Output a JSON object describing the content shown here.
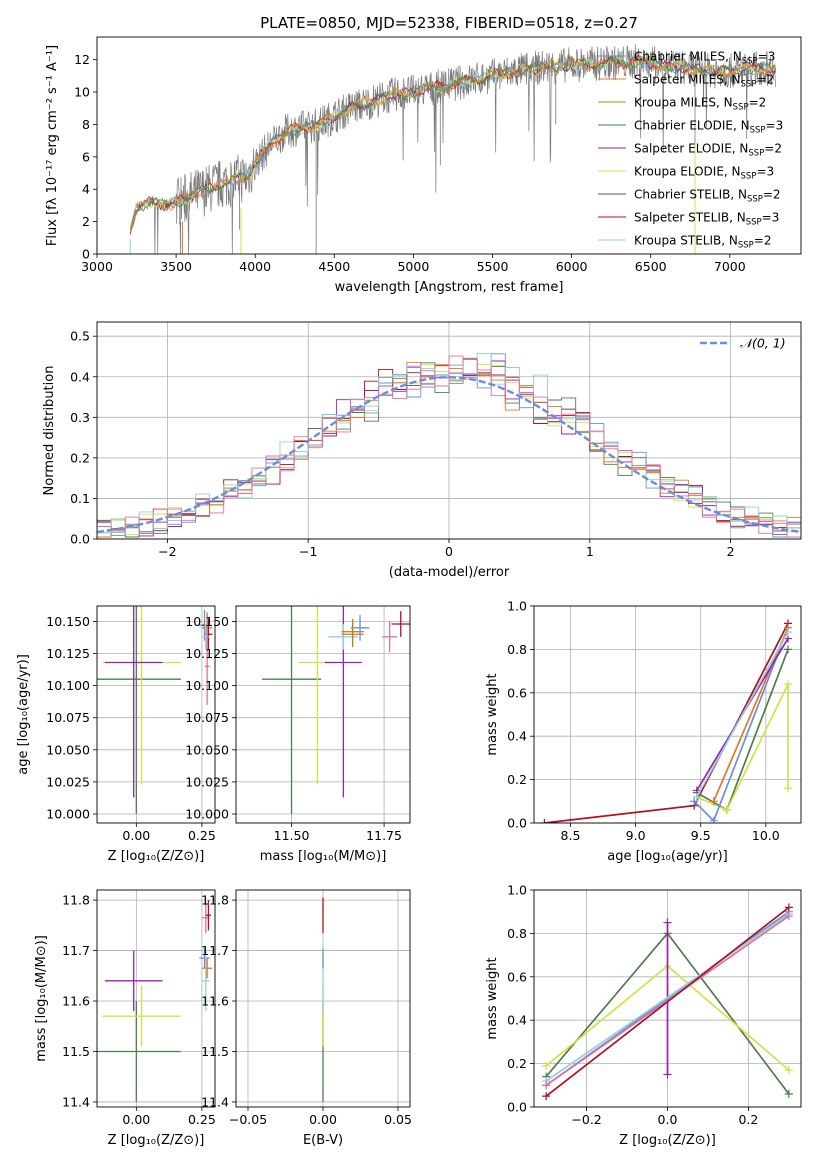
{
  "figure": {
    "title": "PLATE=0850, MJD=52338, FIBERID=0518, z=0.27"
  },
  "colors": {
    "Chabrier MILES": "#6a8fd8",
    "Salpeter MILES": "#e87522",
    "Kroupa MILES": "#b8860b",
    "Chabrier ELODIE": "#4d7d4d",
    "Salpeter ELODIE": "#9b1fb0",
    "Kroupa ELODIE": "#d4e04a",
    "Chabrier STELIB": "#555555",
    "Salpeter STELIB": "#b01020",
    "Kroupa STELIB": "#8fd0e0",
    "Pink": "#e0709f"
  },
  "chart_data": [
    {
      "id": "spectrum",
      "type": "line",
      "title": "PLATE=0850, MJD=52338, FIBERID=0518, z=0.27",
      "xlabel": "wavelength [Angstrom, rest frame]",
      "ylabel": "Flux [fλ 10⁻¹⁷ erg cm⁻² s⁻¹ A⁻¹]",
      "xlim": [
        3000,
        7450
      ],
      "ylim": [
        0,
        13.4
      ],
      "xticks": [
        3000,
        3500,
        4000,
        4500,
        5000,
        5500,
        6000,
        6500,
        7000
      ],
      "yticks": [
        0,
        2,
        4,
        6,
        8,
        10,
        12
      ],
      "grid": false,
      "legend_position": "right",
      "legend": [
        {
          "label": "Chabrier MILES, N",
          "sub": "SSP",
          "tail": "=3"
        },
        {
          "label": "Salpeter MILES, N",
          "sub": "SSP",
          "tail": "=2"
        },
        {
          "label": "Kroupa MILES, N",
          "sub": "SSP",
          "tail": "=2"
        },
        {
          "label": "Chabrier ELODIE, N",
          "sub": "SSP",
          "tail": "=3"
        },
        {
          "label": "Salpeter ELODIE, N",
          "sub": "SSP",
          "tail": "=2"
        },
        {
          "label": "Kroupa ELODIE, N",
          "sub": "SSP",
          "tail": "=3"
        },
        {
          "label": "Chabrier STELIB, N",
          "sub": "SSP",
          "tail": "=2"
        },
        {
          "label": "Salpeter STELIB, N",
          "sub": "SSP",
          "tail": "=3"
        },
        {
          "label": "Kroupa STELIB, N",
          "sub": "SSP",
          "tail": "=2"
        }
      ],
      "continuum": {
        "wavelength": [
          3210,
          3250,
          3350,
          3450,
          3550,
          3650,
          3750,
          3850,
          3950,
          4000,
          4100,
          4200,
          4300,
          4400,
          4500,
          4600,
          4700,
          4800,
          4900,
          5000,
          5100,
          5200,
          5300,
          5400,
          5500,
          5600,
          5700,
          5800,
          5900,
          6000,
          6100,
          6200,
          6300,
          6400,
          6500,
          6600,
          6700,
          6800,
          6900,
          7000,
          7100,
          7200,
          7290
        ],
        "flux": [
          1.5,
          2.9,
          3.2,
          3.0,
          3.4,
          3.8,
          4.2,
          4.5,
          4.8,
          5.6,
          6.8,
          7.6,
          7.8,
          8.0,
          8.5,
          9.0,
          9.3,
          9.6,
          9.9,
          10.0,
          10.2,
          10.4,
          10.6,
          10.8,
          11.0,
          11.2,
          11.4,
          11.5,
          11.6,
          11.7,
          11.7,
          11.8,
          11.8,
          11.9,
          11.8,
          11.6,
          11.5,
          11.4,
          11.3,
          11.3,
          11.4,
          11.5,
          11.4
        ]
      }
    },
    {
      "id": "residuals",
      "type": "histogram",
      "xlabel": "(data-model)/error",
      "ylabel": "Normed distribution",
      "xlim": [
        -2.5,
        2.5
      ],
      "ylim": [
        0,
        0.535
      ],
      "xticks": [
        -2,
        -1,
        0,
        1,
        2
      ],
      "yticks": [
        0.0,
        0.1,
        0.2,
        0.3,
        0.4,
        0.5
      ],
      "grid": true,
      "legend_position": "top-right",
      "legend": [
        {
          "label": "𝒩(0, 1)"
        }
      ],
      "gaussian": {
        "mean": 0,
        "sigma": 1
      }
    },
    {
      "id": "age-vs-z",
      "type": "scatter",
      "xlabel": "Z [log₁₀(Z/Z⊙)]",
      "ylabel": "age  [log₁₀(age/yr)]",
      "xlim": [
        -0.15,
        0.3
      ],
      "ylim": [
        9.993,
        10.162
      ],
      "xticks": [
        0.0,
        0.25
      ],
      "yticks": [
        10.0,
        10.025,
        10.05,
        10.075,
        10.1,
        10.125,
        10.15
      ],
      "grid": true,
      "points": [
        {
          "model": "Chabrier ELODIE",
          "x": 0.0,
          "y": 10.105,
          "xerr": 0.17,
          "yerr": 0.105
        },
        {
          "model": "Kroupa ELODIE",
          "x": 0.02,
          "y": 10.118,
          "xerr": 0.15,
          "yerr": 0.095
        },
        {
          "model": "Salpeter ELODIE",
          "x": -0.01,
          "y": 10.118,
          "xerr": 0.11,
          "yerr": 0.105
        },
        {
          "model": "Chabrier MILES",
          "x": 0.26,
          "y": 10.147,
          "xerr": 0.02,
          "yerr": 0.012
        },
        {
          "model": "Salpeter MILES",
          "x": 0.27,
          "y": 10.145,
          "xerr": 0.02,
          "yerr": 0.012
        },
        {
          "model": "Salpeter STELIB",
          "x": 0.275,
          "y": 10.14,
          "xerr": 0.015,
          "yerr": 0.012
        },
        {
          "model": "Kroupa STELIB",
          "x": 0.265,
          "y": 10.138,
          "xerr": 0.015,
          "yerr": 0.01
        },
        {
          "model": "Pink",
          "x": 0.27,
          "y": 10.115,
          "xerr": 0.01,
          "yerr": 0.03
        }
      ]
    },
    {
      "id": "age-vs-mass",
      "type": "scatter",
      "xlabel": "mass [log₁₀(M/M⊙)]",
      "xlim": [
        11.35,
        11.82
      ],
      "ylim": [
        9.993,
        10.162
      ],
      "xticks": [
        11.5,
        11.75
      ],
      "yticks": [
        10.0,
        10.025,
        10.05,
        10.075,
        10.1,
        10.125,
        10.15
      ],
      "grid": true,
      "points": [
        {
          "model": "Chabrier ELODIE",
          "x": 11.5,
          "y": 10.105,
          "xerr": 0.08,
          "yerr": 0.105
        },
        {
          "model": "Kroupa ELODIE",
          "x": 11.57,
          "y": 10.118,
          "xerr": 0.05,
          "yerr": 0.095
        },
        {
          "model": "Salpeter ELODIE",
          "x": 11.64,
          "y": 10.118,
          "xerr": 0.05,
          "yerr": 0.105
        },
        {
          "model": "Kroupa STELIB",
          "x": 11.64,
          "y": 10.138,
          "xerr": 0.04,
          "yerr": 0.01
        },
        {
          "model": "Salpeter MILES",
          "x": 11.665,
          "y": 10.142,
          "xerr": 0.03,
          "yerr": 0.01
        },
        {
          "model": "Kroupa MILES",
          "x": 11.665,
          "y": 10.14,
          "xerr": 0.03,
          "yerr": 0.01
        },
        {
          "model": "Chabrier MILES",
          "x": 11.685,
          "y": 10.145,
          "xerr": 0.025,
          "yerr": 0.01
        },
        {
          "model": "Pink",
          "x": 11.765,
          "y": 10.138,
          "xerr": 0.02,
          "yerr": 0.012
        },
        {
          "model": "Salpeter STELIB",
          "x": 11.795,
          "y": 10.148,
          "xerr": 0.025,
          "yerr": 0.01
        }
      ]
    },
    {
      "id": "weight-vs-age",
      "type": "line",
      "xlabel": "age  [log₁₀(age/yr)]",
      "ylabel": "mass weight",
      "xlim": [
        8.22,
        10.27
      ],
      "ylim": [
        0,
        1
      ],
      "xticks": [
        8.5,
        9.0,
        9.5,
        10.0
      ],
      "yticks": [
        0.0,
        0.2,
        0.4,
        0.6,
        0.8,
        1.0
      ],
      "grid": true,
      "series": [
        {
          "model": "Salpeter STELIB",
          "x": [
            8.3,
            9.45,
            10.17
          ],
          "y": [
            0.0,
            0.08,
            0.92
          ]
        },
        {
          "model": "Chabrier ELODIE",
          "x": [
            9.47,
            9.7,
            10.17
          ],
          "y": [
            0.14,
            0.06,
            0.8
          ]
        },
        {
          "model": "Kroupa ELODIE",
          "x": [
            9.47,
            9.7,
            10.17,
            10.17
          ],
          "y": [
            0.12,
            0.06,
            0.64,
            0.16
          ]
        },
        {
          "model": "Chabrier MILES",
          "x": [
            9.45,
            9.6,
            10.17
          ],
          "y": [
            0.1,
            0.01,
            0.9
          ]
        },
        {
          "model": "Salpeter MILES",
          "x": [
            9.6,
            10.17
          ],
          "y": [
            0.1,
            0.9
          ]
        },
        {
          "model": "Salpeter ELODIE",
          "x": [
            9.47,
            10.17
          ],
          "y": [
            0.15,
            0.85
          ]
        },
        {
          "model": "Kroupa STELIB",
          "x": [
            9.47,
            10.17
          ],
          "y": [
            0.12,
            0.88
          ]
        }
      ]
    },
    {
      "id": "mass-vs-z",
      "type": "scatter",
      "xlabel": "Z [log₁₀(Z/Z⊙)]",
      "ylabel": "mass [log₁₀(M/M⊙)]",
      "xlim": [
        -0.15,
        0.3
      ],
      "ylim": [
        11.39,
        11.82
      ],
      "xticks": [
        0.0,
        0.25
      ],
      "yticks": [
        11.4,
        11.5,
        11.6,
        11.7,
        11.8
      ],
      "grid": true,
      "points": [
        {
          "model": "Chabrier ELODIE",
          "x": 0.0,
          "y": 11.5,
          "xerr": 0.17,
          "yerr": 0.1
        },
        {
          "model": "Kroupa ELODIE",
          "x": 0.02,
          "y": 11.57,
          "xerr": 0.15,
          "yerr": 0.06
        },
        {
          "model": "Salpeter ELODIE",
          "x": -0.01,
          "y": 11.64,
          "xerr": 0.11,
          "yerr": 0.06
        },
        {
          "model": "Chabrier MILES",
          "x": 0.26,
          "y": 11.685,
          "xerr": 0.02,
          "yerr": 0.02
        },
        {
          "model": "Salpeter MILES",
          "x": 0.27,
          "y": 11.665,
          "xerr": 0.02,
          "yerr": 0.02
        },
        {
          "model": "Kroupa STELIB",
          "x": 0.265,
          "y": 11.64,
          "xerr": 0.015,
          "yerr": 0.06
        },
        {
          "model": "Pink",
          "x": 0.265,
          "y": 11.765,
          "xerr": 0.015,
          "yerr": 0.03
        },
        {
          "model": "Salpeter STELIB",
          "x": 0.275,
          "y": 11.77,
          "xerr": 0.01,
          "yerr": 0.03
        }
      ]
    },
    {
      "id": "mass-vs-ebv",
      "type": "scatter",
      "xlabel": "E(B-V)",
      "xlim": [
        -0.058,
        0.058
      ],
      "ylim": [
        11.39,
        11.82
      ],
      "xticks": [
        -0.05,
        0.0,
        0.05
      ],
      "yticks": [
        11.4,
        11.5,
        11.6,
        11.7,
        11.8
      ],
      "grid": true,
      "points": [
        {
          "model": "Chabrier ELODIE",
          "x": 0.0,
          "y": 11.5,
          "xerr": 0,
          "yerr": 0.1
        },
        {
          "model": "Kroupa ELODIE",
          "x": 0.0,
          "y": 11.57,
          "xerr": 0,
          "yerr": 0.06
        },
        {
          "model": "Kroupa STELIB",
          "x": 0.0,
          "y": 11.64,
          "xerr": 0,
          "yerr": 0.06
        },
        {
          "model": "Chabrier MILES",
          "x": 0.0,
          "y": 11.685,
          "xerr": 0,
          "yerr": 0.02
        },
        {
          "model": "Salpeter STELIB",
          "x": 0.0,
          "y": 11.77,
          "xerr": 0,
          "yerr": 0.035
        }
      ]
    },
    {
      "id": "weight-vs-z",
      "type": "line",
      "xlabel": "Z [log₁₀(Z/Z⊙)]",
      "ylabel": "mass weight",
      "xlim": [
        -0.33,
        0.33
      ],
      "ylim": [
        0,
        1
      ],
      "xticks": [
        -0.2,
        0.0,
        0.2
      ],
      "yticks": [
        0.0,
        0.2,
        0.4,
        0.6,
        0.8,
        1.0
      ],
      "grid": true,
      "series": [
        {
          "model": "Chabrier ELODIE",
          "x": [
            -0.3,
            0.0,
            0.3
          ],
          "y": [
            0.14,
            0.8,
            0.06
          ]
        },
        {
          "model": "Kroupa ELODIE",
          "x": [
            -0.3,
            0.0,
            0.3
          ],
          "y": [
            0.19,
            0.65,
            0.17
          ]
        },
        {
          "model": "Salpeter ELODIE",
          "x": [
            0.0,
            0.0
          ],
          "y": [
            0.15,
            0.85
          ]
        },
        {
          "model": "Chabrier MILES",
          "x": [
            -0.3,
            0.3
          ],
          "y": [
            0.1,
            0.9
          ]
        },
        {
          "model": "Kroupa STELIB",
          "x": [
            -0.3,
            0.3
          ],
          "y": [
            0.12,
            0.89
          ]
        },
        {
          "model": "Pink",
          "x": [
            -0.3,
            0.3
          ],
          "y": [
            0.1,
            0.88
          ]
        },
        {
          "model": "Salpeter STELIB",
          "x": [
            -0.3,
            0.3
          ],
          "y": [
            0.05,
            0.92
          ]
        }
      ]
    }
  ]
}
